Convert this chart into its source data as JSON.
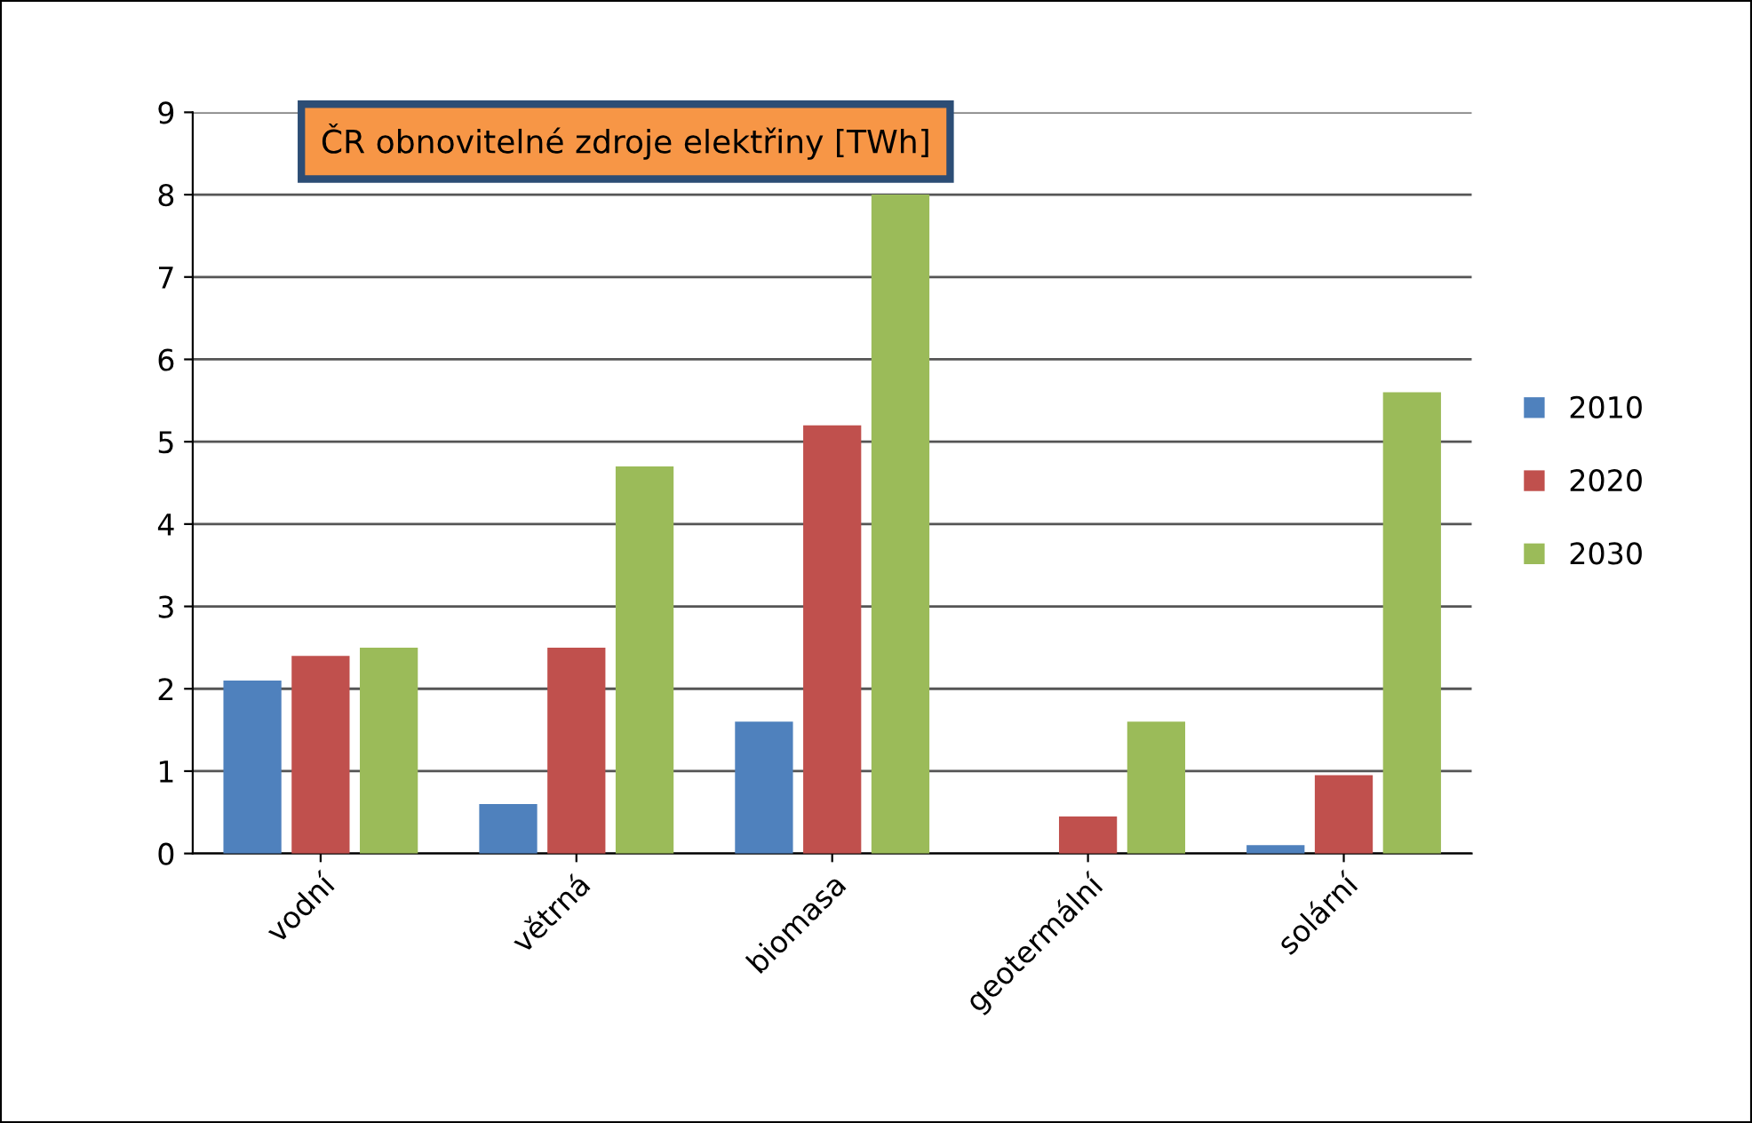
{
  "chart_data": {
    "type": "bar",
    "title": "ČR obnovitelné zdroje elektřiny [TWh]",
    "categories": [
      "vodní",
      "větrná",
      "biomasa",
      "geotermální",
      "solární"
    ],
    "series": [
      {
        "name": "2010",
        "color": "#4f81bd",
        "values": [
          2.1,
          0.6,
          1.6,
          0.0,
          0.1
        ]
      },
      {
        "name": "2020",
        "color": "#c0504d",
        "values": [
          2.4,
          2.5,
          5.2,
          0.45,
          0.95
        ]
      },
      {
        "name": "2030",
        "color": "#9bbb59",
        "values": [
          2.5,
          4.7,
          8.0,
          1.6,
          5.6
        ]
      }
    ],
    "ylim": [
      0,
      9
    ],
    "yticks": [
      0,
      1,
      2,
      3,
      4,
      5,
      6,
      7,
      8,
      9
    ],
    "grid": "y",
    "legend": "right"
  }
}
